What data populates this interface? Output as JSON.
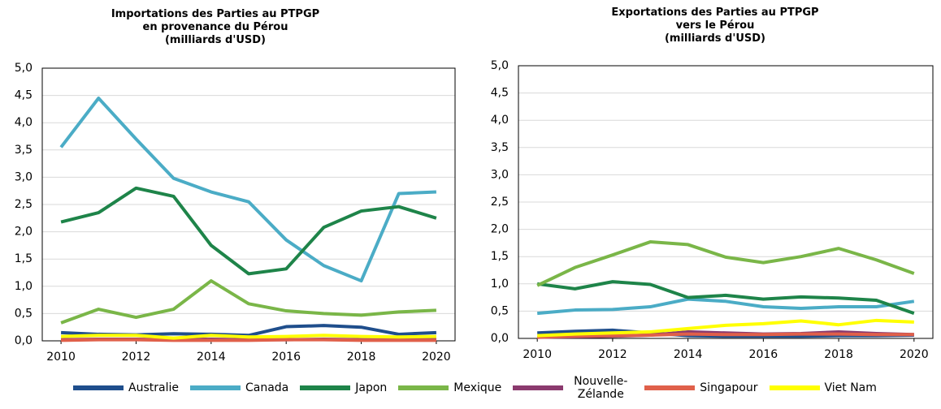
{
  "legend": [
    {
      "name": "Australie",
      "color": "#1f4e8c"
    },
    {
      "name": "Canada",
      "color": "#4bacc6"
    },
    {
      "name": "Japon",
      "color": "#1e8449"
    },
    {
      "name": "Mexique",
      "color": "#7ab648"
    },
    {
      "name": "Nouvelle-Zélande",
      "color": "#8b3a6e"
    },
    {
      "name": "Singapour",
      "color": "#e0604a"
    },
    {
      "name": "Viet Nam",
      "color": "#ffff00"
    }
  ],
  "chart_data": [
    {
      "type": "line",
      "title": "Importations des Parties au PTPGP\nen provenance du Pérou\n(milliards d'USD)",
      "x": [
        2010,
        2011,
        2012,
        2013,
        2014,
        2015,
        2016,
        2017,
        2018,
        2019,
        2020
      ],
      "xlim": [
        2009.5,
        2020.5
      ],
      "xticks": [
        2010,
        2012,
        2014,
        2016,
        2018,
        2020
      ],
      "ylim": [
        0,
        5
      ],
      "yticks": [
        {
          "value": 0,
          "label": "0,0"
        },
        {
          "value": 0.5,
          "label": "0,5"
        },
        {
          "value": 1,
          "label": "1,0"
        },
        {
          "value": 1.5,
          "label": "1,5"
        },
        {
          "value": 2,
          "label": "2,0"
        },
        {
          "value": 2.5,
          "label": "2,5"
        },
        {
          "value": 3,
          "label": "3,0"
        },
        {
          "value": 3.5,
          "label": "3,5"
        },
        {
          "value": 4,
          "label": "4,0"
        },
        {
          "value": 4.5,
          "label": "4,5"
        },
        {
          "value": 5,
          "label": "5,0"
        }
      ],
      "grid": true,
      "series": [
        {
          "values": [
            0.15,
            0.12,
            0.11,
            0.13,
            0.12,
            0.1,
            0.26,
            0.28,
            0.25,
            0.12,
            0.15
          ]
        },
        {
          "values": [
            3.55,
            4.45,
            3.7,
            2.98,
            2.73,
            2.55,
            1.85,
            1.38,
            1.1,
            2.7,
            2.73
          ]
        },
        {
          "values": [
            2.18,
            2.35,
            2.8,
            2.65,
            1.75,
            1.23,
            1.32,
            2.08,
            2.38,
            2.46,
            2.25
          ]
        },
        {
          "values": [
            0.33,
            0.58,
            0.43,
            0.58,
            1.1,
            0.68,
            0.55,
            0.5,
            0.47,
            0.53,
            0.56
          ]
        },
        {
          "values": [
            0.02,
            0.03,
            0.03,
            0.02,
            0.03,
            0.02,
            0.02,
            0.03,
            0.02,
            0.02,
            0.03
          ]
        },
        {
          "values": [
            0.01,
            0.02,
            0.02,
            0.01,
            0.01,
            0.01,
            0.02,
            0.02,
            0.01,
            0.01,
            0.01
          ]
        },
        {
          "values": [
            0.08,
            0.1,
            0.1,
            0.05,
            0.1,
            0.07,
            0.08,
            0.1,
            0.08,
            0.07,
            0.08
          ]
        }
      ]
    },
    {
      "type": "line",
      "title": "Exportations des Parties au PTPGP\nvers le Pérou\n(milliards d'USD)",
      "x": [
        2010,
        2011,
        2012,
        2013,
        2014,
        2015,
        2016,
        2017,
        2018,
        2019,
        2020
      ],
      "xlim": [
        2009.5,
        2020.5
      ],
      "xticks": [
        2010,
        2012,
        2014,
        2016,
        2018,
        2020
      ],
      "ylim": [
        0,
        5
      ],
      "yticks": [
        {
          "value": 0,
          "label": "0,0"
        },
        {
          "value": 0.5,
          "label": "0,5"
        },
        {
          "value": 1,
          "label": "1,0"
        },
        {
          "value": 1.5,
          "label": "1,5"
        },
        {
          "value": 2,
          "label": "2,0"
        },
        {
          "value": 2.5,
          "label": "2,5"
        },
        {
          "value": 3,
          "label": "3,0"
        },
        {
          "value": 3.5,
          "label": "3,5"
        },
        {
          "value": 4,
          "label": "4,0"
        },
        {
          "value": 4.5,
          "label": "4,5"
        },
        {
          "value": 5,
          "label": "5,0"
        }
      ],
      "grid": true,
      "series": [
        {
          "values": [
            0.1,
            0.13,
            0.15,
            0.1,
            0.05,
            0.04,
            0.04,
            0.04,
            0.05,
            0.05,
            0.06
          ]
        },
        {
          "values": [
            0.46,
            0.52,
            0.53,
            0.58,
            0.72,
            0.68,
            0.58,
            0.55,
            0.58,
            0.58,
            0.68
          ]
        },
        {
          "values": [
            1.0,
            0.91,
            1.04,
            0.99,
            0.75,
            0.79,
            0.72,
            0.76,
            0.74,
            0.7,
            0.46
          ]
        },
        {
          "values": [
            0.97,
            1.3,
            1.53,
            1.77,
            1.72,
            1.49,
            1.39,
            1.5,
            1.65,
            1.44,
            1.19
          ]
        },
        {
          "values": [
            0.02,
            0.03,
            0.04,
            0.06,
            0.12,
            0.1,
            0.08,
            0.09,
            0.12,
            0.09,
            0.07
          ]
        },
        {
          "values": [
            0.02,
            0.04,
            0.05,
            0.06,
            0.08,
            0.07,
            0.07,
            0.08,
            0.08,
            0.07,
            0.07
          ]
        },
        {
          "values": [
            0.05,
            0.08,
            0.1,
            0.12,
            0.18,
            0.24,
            0.27,
            0.32,
            0.25,
            0.33,
            0.3
          ]
        }
      ]
    }
  ]
}
